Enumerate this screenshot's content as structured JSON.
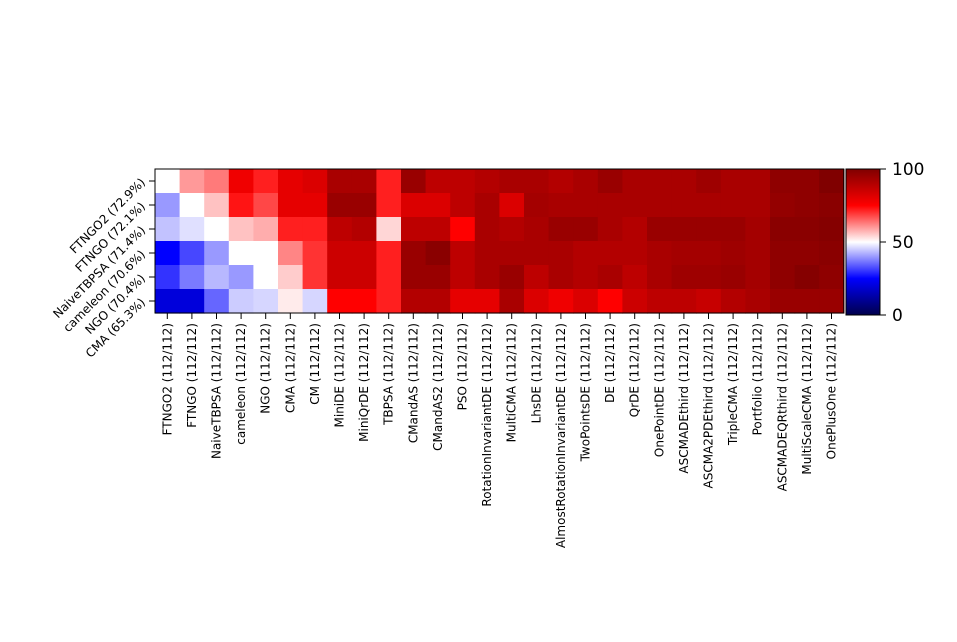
{
  "chart_data": {
    "type": "heatmap",
    "title": "",
    "xlabel": "",
    "ylabel": "",
    "rows": [
      "FTNGO2 (72.9%)",
      "FTNGO (72.1%)",
      "NaiveTBPSA (71.4%)",
      "cameleon (70.6%)",
      "NGO (70.4%)",
      "CMA (65.3%)"
    ],
    "columns": [
      "FTNGO2 (112/112)",
      "FTNGO (112/112)",
      "NaiveTBPSA (112/112)",
      "cameleon (112/112)",
      "NGO (112/112)",
      "CMA (112/112)",
      "CM (112/112)",
      "MiniDE (112/112)",
      "MiniQrDE (112/112)",
      "TBPSA (112/112)",
      "CMandAS (112/112)",
      "CMandAS2 (112/112)",
      "PSO (112/112)",
      "RotationInvariantDE (112/112)",
      "MultiCMA (112/112)",
      "LhsDE (112/112)",
      "AlmostRotationInvariantDE (112/112)",
      "TwoPointsDE (112/112)",
      "DE (112/112)",
      "QrDE (112/112)",
      "OnePointDE (112/112)",
      "ASCMADEthird (112/112)",
      "ASCMA2PDEthird (112/112)",
      "TripleCMA (112/112)",
      "Portfolio (112/112)",
      "ASCMADEQRthird (112/112)",
      "MultiScaleCMA (112/112)",
      "OnePlusOne (112/112)"
    ],
    "values": [
      [
        50,
        60,
        63,
        78,
        72,
        80,
        82,
        92,
        92,
        72,
        95,
        88,
        88,
        90,
        92,
        92,
        90,
        92,
        95,
        92,
        92,
        92,
        94,
        92,
        92,
        97,
        97,
        100
      ],
      [
        40,
        50,
        56,
        73,
        68,
        80,
        80,
        95,
        95,
        72,
        82,
        82,
        88,
        92,
        82,
        93,
        92,
        92,
        92,
        92,
        92,
        92,
        92,
        92,
        92,
        96,
        97,
        98
      ],
      [
        44,
        47,
        50,
        56,
        58,
        72,
        72,
        88,
        90,
        54,
        88,
        88,
        75,
        92,
        90,
        92,
        95,
        95,
        92,
        90,
        95,
        95,
        95,
        95,
        93,
        98,
        98,
        99
      ],
      [
        25,
        32,
        40,
        50,
        50,
        62,
        70,
        85,
        85,
        72,
        95,
        98,
        88,
        92,
        92,
        92,
        92,
        90,
        90,
        90,
        92,
        93,
        93,
        94,
        93,
        97,
        97,
        98
      ],
      [
        30,
        37,
        43,
        40,
        50,
        55,
        70,
        85,
        85,
        72,
        95,
        95,
        88,
        92,
        95,
        88,
        92,
        90,
        92,
        88,
        92,
        94,
        94,
        95,
        93,
        97,
        99,
        97
      ],
      [
        20,
        20,
        35,
        45,
        46,
        52,
        46,
        75,
        75,
        72,
        90,
        90,
        80,
        80,
        92,
        82,
        78,
        82,
        75,
        85,
        88,
        88,
        86,
        90,
        92,
        95,
        95,
        95
      ]
    ],
    "colorbar": {
      "min": 0,
      "max": 100,
      "ticks": [
        "0",
        "50",
        "100"
      ]
    },
    "colormap": "seismic",
    "grid": false
  }
}
